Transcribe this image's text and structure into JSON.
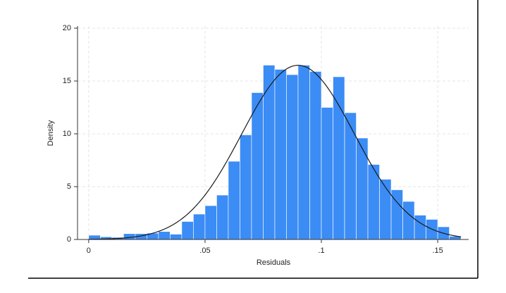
{
  "chart_data": {
    "type": "histogram",
    "x_label": "Residuals",
    "y_label": "Density",
    "bins": [
      0,
      0.005,
      0.01,
      0.015,
      0.02,
      0.025,
      0.03,
      0.035,
      0.04,
      0.045,
      0.05,
      0.055,
      0.06,
      0.065,
      0.07,
      0.075,
      0.08,
      0.085,
      0.09,
      0.095,
      0.1,
      0.105,
      0.11,
      0.115,
      0.12,
      0.125,
      0.13,
      0.135,
      0.14,
      0.145,
      0.15,
      0.155,
      0.16
    ],
    "values": [
      0.4,
      0.25,
      0.2,
      0.55,
      0.55,
      0.6,
      0.75,
      0.5,
      1.7,
      2.4,
      3.2,
      4.2,
      7.4,
      9.9,
      13.9,
      16.5,
      16.1,
      15.6,
      16.5,
      15.9,
      12.5,
      15.4,
      12.0,
      9.6,
      7.1,
      5.7,
      4.7,
      3.6,
      2.3,
      1.9,
      1.2,
      0.3
    ],
    "color": "#3b8cf5",
    "normal_overlay": {
      "mean": 0.09,
      "sd": 0.0242,
      "color": "#1a1a1a"
    },
    "xlim": [
      -0.0048,
      0.1633
    ],
    "ylim": [
      0,
      20.2
    ],
    "xticks": [
      0,
      {
        "value": 0.05,
        "label": ".05"
      },
      {
        "value": 0.1,
        "label": ".1"
      },
      {
        "value": 0.15,
        "label": ".15"
      }
    ],
    "yticks": [
      0,
      5,
      10,
      15,
      20
    ],
    "grid": true
  }
}
